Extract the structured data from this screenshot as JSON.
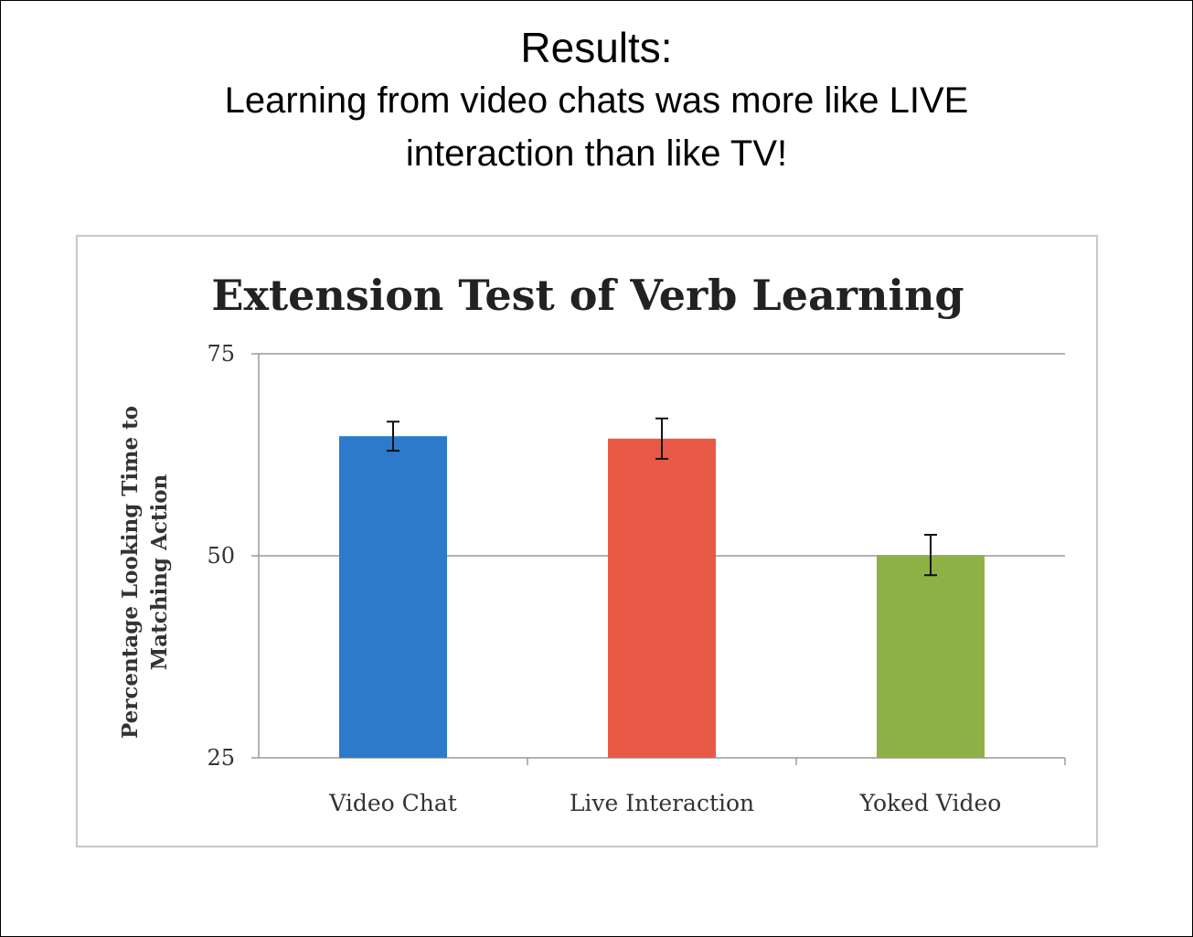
{
  "slide": {
    "title": "Results:",
    "subtitle_line1": "Learning from video chats was more like LIVE",
    "subtitle_line2": "interaction than like TV!"
  },
  "chart_data": {
    "type": "bar",
    "title": "Extension Test of Verb Learning",
    "ylabel_line1": "Percentage Looking Time to",
    "ylabel_line2": "Matching Action",
    "xlabel": "",
    "categories": [
      "Video Chat",
      "Live Interaction",
      "Yoked Video"
    ],
    "values": [
      64.8,
      64.5,
      50.1
    ],
    "error": [
      1.8,
      2.5,
      2.5
    ],
    "colors": [
      "#2b7bca",
      "#e85a45",
      "#8db145"
    ],
    "ylim": [
      25,
      75
    ],
    "yticks": [
      25,
      50,
      75
    ],
    "grid": true,
    "legend": "none"
  }
}
